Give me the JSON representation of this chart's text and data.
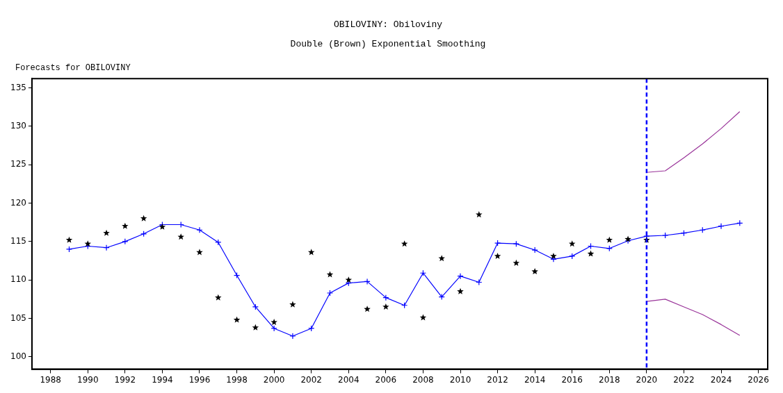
{
  "chart_data": {
    "type": "line",
    "title": "OBILOVINY: Obiloviny",
    "subtitle": "Double (Brown) Exponential Smoothing",
    "annotations": [
      "Forecasts for OBILOVINY"
    ],
    "xlim": [
      1987,
      2026.5
    ],
    "xticks": [
      1988,
      1990,
      1992,
      1994,
      1996,
      1998,
      2000,
      2002,
      2004,
      2006,
      2008,
      2010,
      2012,
      2014,
      2016,
      2018,
      2020,
      2022,
      2024,
      2026
    ],
    "ylim": [
      98.4,
      136.2
    ],
    "yticks": [
      100,
      105,
      110,
      115,
      120,
      125,
      130,
      135
    ],
    "grid": false,
    "legend": false,
    "ref_lines": [
      {
        "axis": "x",
        "value": 2020,
        "color": "#0000ff",
        "line_style": "dashed"
      }
    ],
    "series": [
      {
        "type": "scatter",
        "marker": "star",
        "color": "#000000",
        "x": [
          1989,
          1990,
          1991,
          1992,
          1993,
          1994,
          1995,
          1996,
          1997,
          1998,
          1999,
          2000,
          2001,
          2002,
          2003,
          2004,
          2005,
          2006,
          2007,
          2008,
          2009,
          2010,
          2011,
          2012,
          2013,
          2014,
          2015,
          2016,
          2017,
          2018,
          2019,
          2020
        ],
        "values": [
          115.2,
          114.7,
          116.1,
          117.0,
          118.0,
          116.9,
          115.6,
          113.6,
          107.7,
          104.8,
          103.8,
          104.5,
          106.8,
          113.6,
          110.7,
          110.0,
          106.2,
          106.5,
          114.7,
          105.1,
          112.8,
          108.5,
          118.5,
          113.1,
          112.2,
          111.1,
          113.1,
          114.7,
          113.4,
          115.2,
          115.3,
          115.2
        ]
      },
      {
        "type": "line",
        "marker": "cross",
        "line_style": "solid",
        "color": "#0000ff",
        "x": [
          1989,
          1990,
          1991,
          1992,
          1993,
          1994,
          1995,
          1996,
          1997,
          1998,
          1999,
          2000,
          2001,
          2002,
          2003,
          2004,
          2005,
          2006,
          2007,
          2008,
          2009,
          2010,
          2011,
          2012,
          2013,
          2014,
          2015,
          2016,
          2017,
          2018,
          2019,
          2020,
          2021,
          2022,
          2023,
          2024,
          2025
        ],
        "values": [
          114.0,
          114.4,
          114.2,
          115.0,
          116.0,
          117.2,
          117.2,
          116.5,
          114.9,
          110.6,
          106.5,
          103.7,
          102.7,
          103.7,
          108.3,
          109.6,
          109.8,
          107.7,
          106.7,
          110.9,
          107.8,
          110.5,
          109.7,
          114.8,
          114.7,
          113.9,
          112.7,
          113.1,
          114.4,
          114.1,
          115.1,
          115.7,
          115.8,
          116.1,
          116.5,
          117.0,
          117.4
        ]
      },
      {
        "type": "line",
        "marker": "none",
        "line_style": "solid",
        "color": "#993399",
        "x": [
          2020,
          2021,
          2022,
          2023,
          2024,
          2025
        ],
        "values": [
          124.0,
          124.2,
          125.9,
          127.7,
          129.7,
          131.9
        ]
      },
      {
        "type": "line",
        "marker": "none",
        "line_style": "solid",
        "color": "#993399",
        "x": [
          2020,
          2021,
          2022,
          2023,
          2024,
          2025
        ],
        "values": [
          107.2,
          107.5,
          106.5,
          105.5,
          104.2,
          102.8
        ]
      }
    ]
  }
}
